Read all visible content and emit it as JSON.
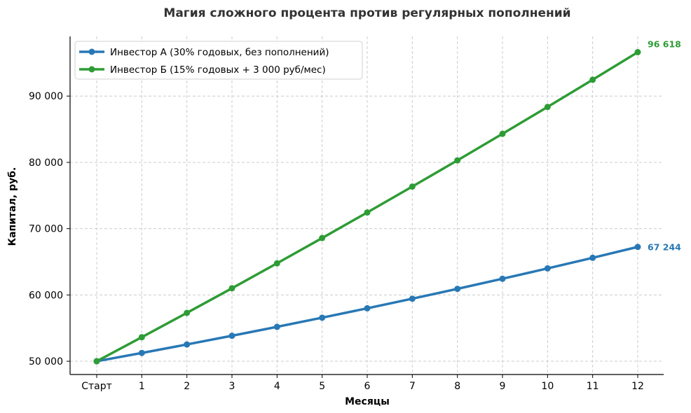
{
  "chart_data": {
    "type": "line",
    "title": "Магия сложного процента против регулярных пополнений",
    "xlabel": "Месяцы",
    "ylabel": "Капитал, руб.",
    "categories": [
      "Старт",
      "1",
      "2",
      "3",
      "4",
      "5",
      "6",
      "7",
      "8",
      "9",
      "10",
      "11",
      "12"
    ],
    "ylim": [
      48000,
      99000
    ],
    "yticks": [
      50000,
      60000,
      70000,
      80000,
      90000
    ],
    "ytick_labels": [
      "50 000",
      "60 000",
      "70 000",
      "80 000",
      "90 000"
    ],
    "grid": true,
    "legend_position": "top-left",
    "series": [
      {
        "name": "Инвестор А (30% годовых, без пополнений)",
        "color": "#2878b5",
        "values": [
          50000,
          51250,
          52531,
          53845,
          55191,
          56570,
          57985,
          59434,
          60920,
          62443,
          64004,
          65604,
          67244
        ],
        "end_label": "67 244"
      },
      {
        "name": "Инвестор Б (15% годовых + 3 000 руб/мес)",
        "color": "#2e9c35",
        "values": [
          50000,
          53625,
          57295,
          61011,
          64774,
          68584,
          72441,
          76347,
          80301,
          84305,
          88359,
          92463,
          96618
        ],
        "end_label": "96 618"
      }
    ]
  }
}
